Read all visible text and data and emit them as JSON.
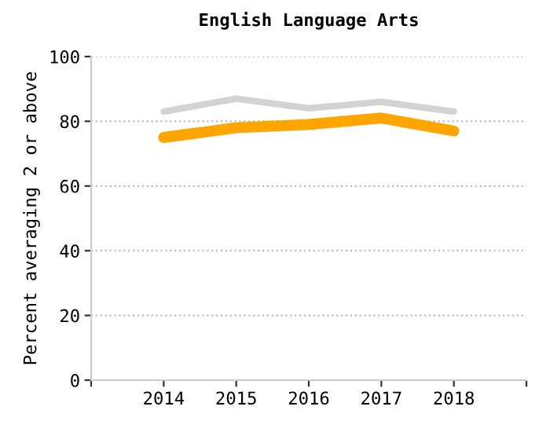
{
  "chart_data": {
    "type": "line",
    "title": "English Language Arts",
    "ylabel": "Percent averaging 2 or above",
    "x": [
      2014,
      2015,
      2016,
      2017,
      2018
    ],
    "series": [
      {
        "color": "#d3d3d3",
        "values": [
          83,
          87,
          84,
          86,
          83
        ]
      },
      {
        "color": "#ffa500",
        "values": [
          75,
          78,
          79,
          81,
          77
        ]
      }
    ],
    "xlim": [
      2013,
      2019
    ],
    "xticks": [
      {
        "value": 2013,
        "label": null
      },
      2014,
      2015,
      2016,
      2017,
      2018,
      {
        "value": 2019,
        "label": null
      }
    ],
    "ylim": [
      0,
      100
    ],
    "yticks": [
      0,
      20,
      40,
      60,
      80,
      100
    ],
    "grid": "y",
    "marker": "none",
    "line_style": "solid"
  }
}
